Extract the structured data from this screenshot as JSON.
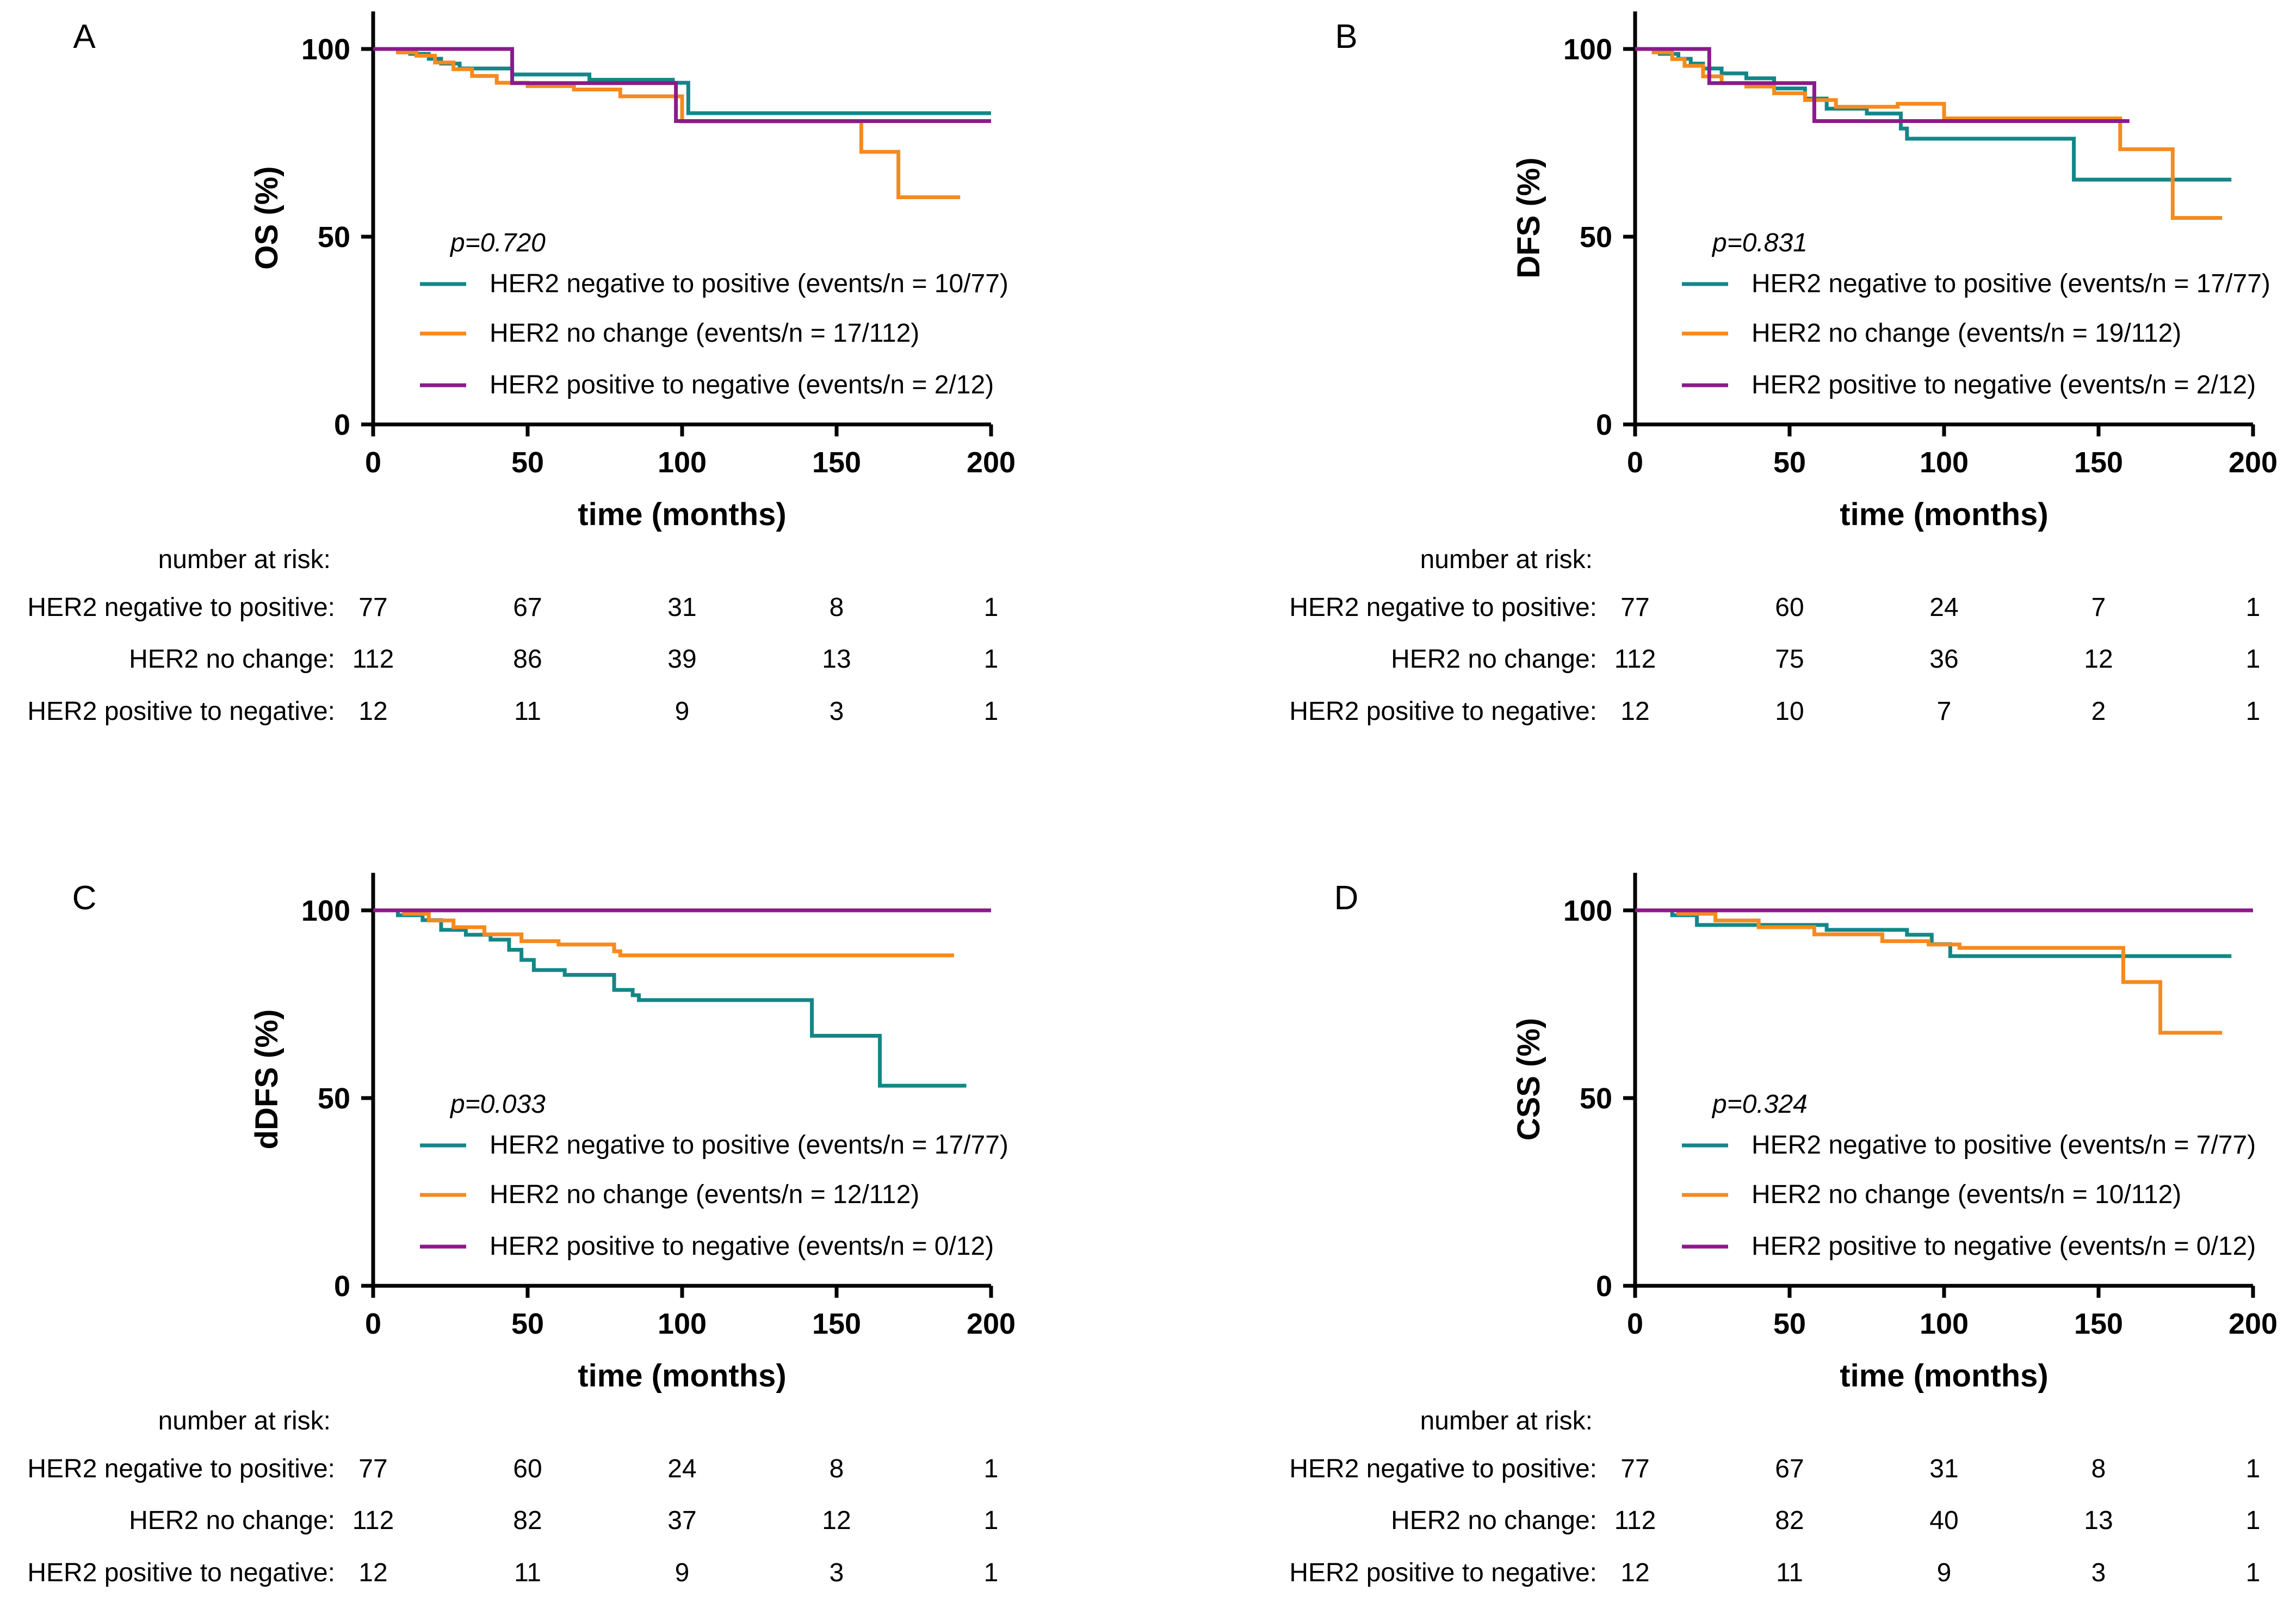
{
  "colors": {
    "neg_to_pos": "#138787",
    "no_change": "#f58a1f",
    "pos_to_neg": "#8b1a8b"
  },
  "chart_data": [
    {
      "type": "line",
      "panel": "A",
      "ylabel": "OS (%)",
      "xlabel": "time (months)",
      "xlim": [
        0,
        200
      ],
      "ylim": [
        0,
        110
      ],
      "xticks": [
        "0",
        "50",
        "100",
        "150",
        "200"
      ],
      "yticks": [
        "0",
        "50",
        "100"
      ],
      "grid": false,
      "pvalue": "p=0.720",
      "series": [
        {
          "name": "HER2 negative to positive (events/n = 10/77)",
          "color_key": "neg_to_pos",
          "x": [
            0,
            12,
            18,
            22,
            28,
            45,
            70,
            97,
            102,
            200
          ],
          "y": [
            100,
            98.7,
            97.4,
            96.1,
            94.8,
            93.2,
            91.8,
            91.0,
            82.9,
            82.9
          ]
        },
        {
          "name": "HER2 no change (events/n = 17/112)",
          "color_key": "no_change",
          "x": [
            0,
            8,
            14,
            20,
            26,
            32,
            40,
            50,
            65,
            80,
            100,
            158,
            170,
            190
          ],
          "y": [
            100,
            99.1,
            98.2,
            96.4,
            94.6,
            92.8,
            91.0,
            90.1,
            89.2,
            87.4,
            80.7,
            72.6,
            60.5,
            60.5
          ]
        },
        {
          "name": "HER2 positive to negative (events/n = 2/12)",
          "color_key": "pos_to_neg",
          "x": [
            0,
            45,
            98,
            200
          ],
          "y": [
            100,
            90.9,
            80.8,
            80.8
          ]
        }
      ],
      "risk_table": {
        "title": "number at risk:",
        "timepoints": [
          0,
          50,
          100,
          150,
          200
        ],
        "rows": [
          {
            "label": "HER2 negative to positive:",
            "values": [
              "77",
              "67",
              "31",
              "8",
              "1"
            ]
          },
          {
            "label": "HER2 no change:",
            "values": [
              "112",
              "86",
              "39",
              "13",
              "1"
            ]
          },
          {
            "label": "HER2 positive to negative:",
            "values": [
              "12",
              "11",
              "9",
              "3",
              "1"
            ]
          }
        ]
      }
    },
    {
      "type": "line",
      "panel": "B",
      "ylabel": "DFS (%)",
      "xlabel": "time (months)",
      "xlim": [
        0,
        200
      ],
      "ylim": [
        0,
        110
      ],
      "xticks": [
        "0",
        "50",
        "100",
        "150",
        "200"
      ],
      "yticks": [
        "0",
        "50",
        "100"
      ],
      "grid": false,
      "pvalue": "p=0.831",
      "series": [
        {
          "name": "HER2 negative to positive (events/n = 17/77)",
          "color_key": "neg_to_pos",
          "x": [
            0,
            8,
            14,
            18,
            22,
            28,
            36,
            45,
            55,
            62,
            75,
            86,
            88,
            142,
            193
          ],
          "y": [
            100,
            98.7,
            97.4,
            96.1,
            94.8,
            93.5,
            92.2,
            89.5,
            86.8,
            84.1,
            82.8,
            78.8,
            76.1,
            65.2,
            65.2
          ]
        },
        {
          "name": "HER2 no change (events/n = 19/112)",
          "color_key": "no_change",
          "x": [
            0,
            6,
            12,
            16,
            22,
            28,
            36,
            45,
            55,
            65,
            85,
            100,
            157,
            174,
            190
          ],
          "y": [
            100,
            99.1,
            97.3,
            95.5,
            92.7,
            90.9,
            90.0,
            88.2,
            86.4,
            84.6,
            85.4,
            81.5,
            73.3,
            55.0,
            55.0
          ]
        },
        {
          "name": "HER2 positive to negative (events/n = 2/12)",
          "color_key": "pos_to_neg",
          "x": [
            0,
            24,
            58,
            160
          ],
          "y": [
            100,
            90.9,
            80.8,
            80.8
          ]
        }
      ],
      "risk_table": {
        "title": "number at risk:",
        "timepoints": [
          0,
          50,
          100,
          150,
          200
        ],
        "rows": [
          {
            "label": "HER2 negative to positive:",
            "values": [
              "77",
              "60",
              "24",
              "7",
              "1"
            ]
          },
          {
            "label": "HER2 no change:",
            "values": [
              "112",
              "75",
              "36",
              "12",
              "1"
            ]
          },
          {
            "label": "HER2 positive to negative:",
            "values": [
              "12",
              "10",
              "7",
              "2",
              "1"
            ]
          }
        ]
      }
    },
    {
      "type": "line",
      "panel": "C",
      "ylabel": "dDFS (%)",
      "xlabel": "time (months)",
      "xlim": [
        0,
        200
      ],
      "ylim": [
        0,
        110
      ],
      "xticks": [
        "0",
        "50",
        "100",
        "150",
        "200"
      ],
      "yticks": [
        "0",
        "50",
        "100"
      ],
      "grid": false,
      "pvalue": "p=0.033",
      "series": [
        {
          "name": "HER2 negative to positive (events/n = 17/77)",
          "color_key": "neg_to_pos",
          "x": [
            0,
            8,
            16,
            22,
            30,
            38,
            44,
            48,
            52,
            62,
            78,
            84,
            86,
            142,
            164,
            192
          ],
          "y": [
            100,
            98.7,
            97.4,
            94.8,
            93.5,
            92.2,
            89.5,
            86.8,
            84.1,
            82.8,
            78.8,
            77.4,
            76.1,
            66.6,
            53.3,
            53.3
          ]
        },
        {
          "name": "HER2 no change (events/n = 12/112)",
          "color_key": "no_change",
          "x": [
            0,
            10,
            18,
            26,
            36,
            48,
            60,
            78,
            80,
            188
          ],
          "y": [
            100,
            99.1,
            97.3,
            95.5,
            93.6,
            91.8,
            90.9,
            89.1,
            88.0,
            88.0
          ]
        },
        {
          "name": "HER2 positive to negative (events/n = 0/12)",
          "color_key": "pos_to_neg",
          "x": [
            0,
            200
          ],
          "y": [
            100,
            100
          ]
        }
      ],
      "risk_table": {
        "title": "number at risk:",
        "timepoints": [
          0,
          50,
          100,
          150,
          200
        ],
        "rows": [
          {
            "label": "HER2 negative to positive:",
            "values": [
              "77",
              "60",
              "24",
              "8",
              "1"
            ]
          },
          {
            "label": "HER2 no change:",
            "values": [
              "112",
              "82",
              "37",
              "12",
              "1"
            ]
          },
          {
            "label": "HER2 positive to negative:",
            "values": [
              "12",
              "11",
              "9",
              "3",
              "1"
            ]
          }
        ]
      }
    },
    {
      "type": "line",
      "panel": "D",
      "ylabel": "CSS (%)",
      "xlabel": "time (months)",
      "xlim": [
        0,
        200
      ],
      "ylim": [
        0,
        110
      ],
      "xticks": [
        "0",
        "50",
        "100",
        "150",
        "200"
      ],
      "yticks": [
        "0",
        "50",
        "100"
      ],
      "grid": false,
      "pvalue": "p=0.324",
      "series": [
        {
          "name": "HER2 negative to positive (events/n = 7/77)",
          "color_key": "neg_to_pos",
          "x": [
            0,
            12,
            20,
            62,
            88,
            96,
            102,
            193
          ],
          "y": [
            100,
            98.7,
            96.1,
            94.8,
            93.5,
            91.0,
            87.8,
            87.8
          ]
        },
        {
          "name": "HER2 no change (events/n = 10/112)",
          "color_key": "no_change",
          "x": [
            0,
            14,
            26,
            40,
            58,
            80,
            95,
            105,
            158,
            170,
            190
          ],
          "y": [
            100,
            99.1,
            97.3,
            95.5,
            93.6,
            91.8,
            90.9,
            90.0,
            80.9,
            67.4,
            67.4
          ]
        },
        {
          "name": "HER2 positive to negative (events/n = 0/12)",
          "color_key": "pos_to_neg",
          "x": [
            0,
            200
          ],
          "y": [
            100,
            100
          ]
        }
      ],
      "risk_table": {
        "title": "number at risk:",
        "timepoints": [
          0,
          50,
          100,
          150,
          200
        ],
        "rows": [
          {
            "label": "HER2 negative to positive:",
            "values": [
              "77",
              "67",
              "31",
              "8",
              "1"
            ]
          },
          {
            "label": "HER2 no change:",
            "values": [
              "112",
              "82",
              "40",
              "13",
              "1"
            ]
          },
          {
            "label": "HER2 positive to negative:",
            "values": [
              "12",
              "11",
              "9",
              "3",
              "1"
            ]
          }
        ]
      }
    }
  ]
}
